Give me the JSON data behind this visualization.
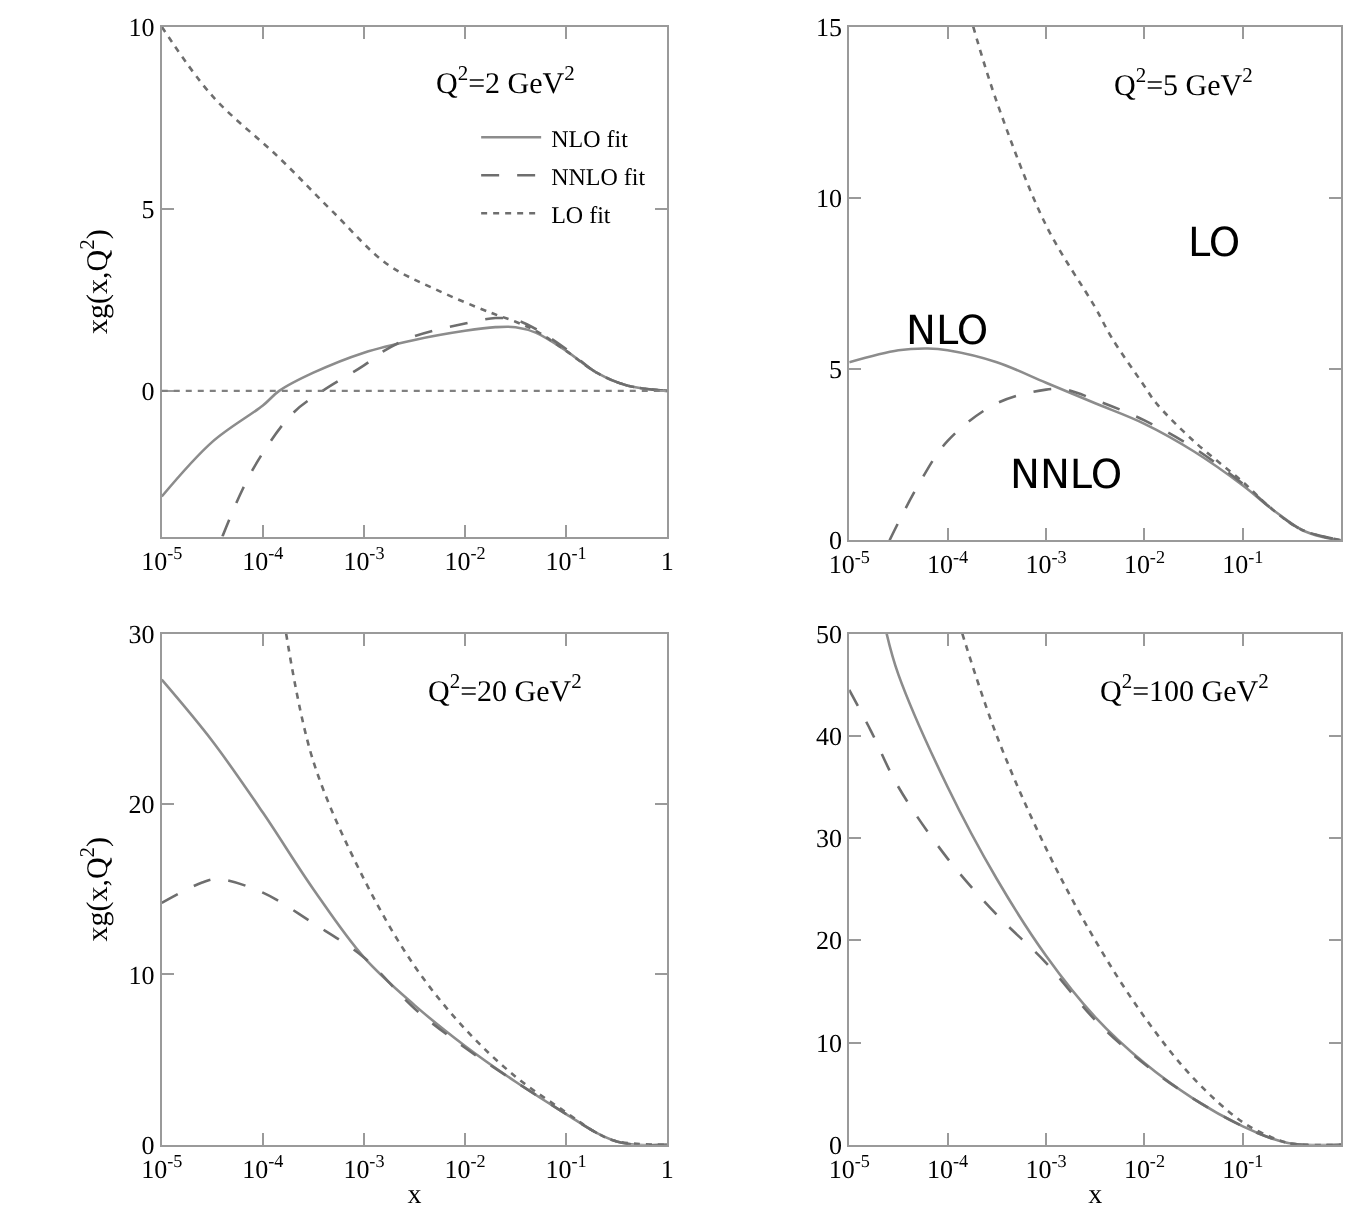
{
  "chart_data": [
    {
      "type": "line",
      "log": "x",
      "xlim": [
        1e-05,
        1
      ],
      "ylim": [
        -4,
        10
      ],
      "ylabel": "xg(x,Q$^{2}$)",
      "legend": "top right",
      "xticks": [
        {
          "value": 1e-05,
          "label": "10$^{-5}$"
        },
        {
          "value": 0.0001,
          "label": "10$^{-4}$"
        },
        {
          "value": 0.001,
          "label": "10$^{-3}$"
        },
        {
          "value": 0.01,
          "label": "10$^{-2}$"
        },
        {
          "value": 0.1,
          "label": "10$^{-1}$"
        },
        1
      ],
      "yticks": [
        0,
        5,
        10
      ],
      "annotations": [
        "Q$^{2}$=2 GeV$^{2}$"
      ],
      "ref_lines": [
        {
          "axis": "y",
          "value": 0,
          "color": "#808080",
          "line_style": "dotted"
        }
      ],
      "series": [
        {
          "name": "NLO fit",
          "color": "#8c8c8c",
          "line_style": "solid",
          "x": [
            1e-05,
            3.16e-05,
            0.0001,
            0.000145,
            0.000316,
            0.001,
            0.00316,
            0.01,
            0.02,
            0.0316,
            0.05,
            0.1,
            0.2,
            0.4,
            1
          ],
          "values": [
            -2.9,
            -1.4,
            -0.4,
            0,
            0.5,
            1.05,
            1.4,
            1.65,
            1.75,
            1.75,
            1.6,
            1.1,
            0.5,
            0.15,
            0
          ]
        },
        {
          "name": "NNLO fit",
          "color": "#6e6e6e",
          "line_style": "dashed",
          "x": [
            3.98e-05,
            6.31e-05,
            0.0001,
            0.0002,
            0.00039,
            0.001,
            0.00158,
            0.00316,
            0.01,
            0.02,
            0.0316,
            0.05,
            0.1,
            0.2,
            0.4,
            1
          ],
          "values": [
            -4,
            -2.7,
            -1.7,
            -0.6,
            0,
            0.7,
            1.1,
            1.5,
            1.85,
            2.0,
            1.95,
            1.7,
            1.15,
            0.5,
            0.15,
            0
          ]
        },
        {
          "name": "LO fit",
          "color": "#6e6e6e",
          "line_style": "dotted",
          "x": [
            1e-05,
            3.16e-05,
            0.000145,
            0.0005,
            0.00166,
            0.005,
            0.0178,
            0.0316,
            0.05,
            0.1,
            0.2,
            0.4,
            1
          ],
          "values": [
            10,
            8.1,
            6.4,
            4.9,
            3.5,
            2.8,
            2.15,
            1.9,
            1.65,
            1.1,
            0.5,
            0.15,
            0
          ]
        }
      ]
    },
    {
      "type": "line",
      "log": "x",
      "xlim": [
        1e-05,
        1
      ],
      "ylim": [
        0,
        15
      ],
      "xticks": [
        {
          "value": 1e-05,
          "label": "10$^{-5}$"
        },
        {
          "value": 0.0001,
          "label": "10$^{-4}$"
        },
        {
          "value": 0.001,
          "label": "10$^{-3}$"
        },
        {
          "value": 0.01,
          "label": "10$^{-2}$"
        },
        {
          "value": 0.1,
          "label": "10$^{-1}$"
        }
      ],
      "yticks": [
        0,
        5,
        10,
        15
      ],
      "annotations": [
        "Q$^{2}$=5 GeV$^{2}$",
        "LO",
        "NLO",
        "NNLO"
      ],
      "series": [
        {
          "color": "#8c8c8c",
          "line_style": "solid",
          "x": [
            1e-05,
            3.16e-05,
            6.31e-05,
            0.0001,
            0.000316,
            0.001,
            0.00316,
            0.01,
            0.0316,
            0.1,
            0.2,
            0.4,
            0.63,
            1
          ],
          "values": [
            5.2,
            5.55,
            5.6,
            5.55,
            5.2,
            4.6,
            4.0,
            3.4,
            2.6,
            1.6,
            0.9,
            0.3,
            0.1,
            0
          ]
        },
        {
          "color": "#6e6e6e",
          "line_style": "dashed",
          "x": [
            2.57e-05,
            5.01e-05,
            0.0001,
            0.000316,
            0.001,
            0.00158,
            0.00316,
            0.01,
            0.0316,
            0.1,
            0.2,
            0.4,
            1
          ],
          "values": [
            0,
            1.6,
            2.9,
            4.0,
            4.4,
            4.4,
            4.1,
            3.5,
            2.7,
            1.65,
            0.9,
            0.3,
            0
          ]
        },
        {
          "color": "#6e6e6e",
          "line_style": "dotted",
          "x": [
            0.000182,
            0.000316,
            0.001,
            0.00316,
            0.00468,
            0.01,
            0.0132,
            0.0316,
            0.1,
            0.2,
            0.4,
            1
          ],
          "values": [
            15,
            12.8,
            9.2,
            6.8,
            5.9,
            4.5,
            4.0,
            2.9,
            1.7,
            0.9,
            0.3,
            0
          ]
        }
      ]
    },
    {
      "type": "line",
      "log": "x",
      "xlim": [
        1e-05,
        1
      ],
      "ylim": [
        0,
        30
      ],
      "ylabel": "xg(x,Q$^{2}$)",
      "xlabel": "x",
      "xticks": [
        {
          "value": 1e-05,
          "label": "10$^{-5}$"
        },
        {
          "value": 0.0001,
          "label": "10$^{-4}$"
        },
        {
          "value": 0.001,
          "label": "10$^{-3}$"
        },
        {
          "value": 0.01,
          "label": "10$^{-2}$"
        },
        {
          "value": 0.1,
          "label": "10$^{-1}$"
        },
        1
      ],
      "yticks": [
        0,
        10,
        20,
        30
      ],
      "annotations": [
        "Q$^{2}$=20 GeV$^{2}$"
      ],
      "series": [
        {
          "color": "#8c8c8c",
          "line_style": "solid",
          "x": [
            1e-05,
            3.16e-05,
            0.0001,
            0.000316,
            0.001,
            0.00316,
            0.01,
            0.0316,
            0.1,
            0.2,
            0.316,
            0.5,
            1
          ],
          "values": [
            27.3,
            23.7,
            19.5,
            15,
            11.0,
            8.2,
            5.8,
            3.7,
            1.8,
            0.7,
            0.2,
            0,
            0
          ]
        },
        {
          "color": "#6e6e6e",
          "line_style": "dashed",
          "x": [
            1e-05,
            2.51e-05,
            3.63e-05,
            0.0001,
            0.000316,
            0.001,
            0.00316,
            0.01,
            0.0316,
            0.1,
            0.2,
            0.316,
            0.5,
            1
          ],
          "values": [
            14.2,
            15.4,
            15.6,
            14.8,
            13.0,
            11.0,
            8.0,
            5.7,
            3.7,
            1.8,
            0.7,
            0.2,
            0,
            0
          ]
        },
        {
          "color": "#6e6e6e",
          "line_style": "dotted",
          "x": [
            0.00017,
            0.000316,
            0.001,
            0.00316,
            0.01,
            0.0316,
            0.1,
            0.2,
            0.316,
            1
          ],
          "values": [
            30,
            22.5,
            15.6,
            10.5,
            6.8,
            4.0,
            1.9,
            0.7,
            0.2,
            0
          ]
        }
      ]
    },
    {
      "type": "line",
      "log": "x",
      "xlim": [
        1e-05,
        1
      ],
      "ylim": [
        0,
        50
      ],
      "xlabel": "x",
      "xticks": [
        {
          "value": 1e-05,
          "label": "10$^{-5}$"
        },
        {
          "value": 0.0001,
          "label": "10$^{-4}$"
        },
        {
          "value": 0.001,
          "label": "10$^{-3}$"
        },
        {
          "value": 0.01,
          "label": "10$^{-2}$"
        },
        {
          "value": 0.1,
          "label": "10$^{-1}$"
        }
      ],
      "yticks": [
        0,
        10,
        20,
        30,
        40,
        50
      ],
      "annotations": [
        "Q$^{2}$=100 GeV$^{2}$"
      ],
      "series": [
        {
          "color": "#8c8c8c",
          "line_style": "solid",
          "x": [
            2.4e-05,
            3.16e-05,
            0.0001,
            0.000316,
            0.001,
            0.00316,
            0.01,
            0.0316,
            0.1,
            0.2,
            0.316,
            1
          ],
          "values": [
            50,
            46,
            35,
            26,
            18.5,
            12.5,
            8,
            4.5,
            1.8,
            0.6,
            0.1,
            0
          ]
        },
        {
          "color": "#6e6e6e",
          "line_style": "dashed",
          "x": [
            1e-05,
            1.66e-05,
            3.16e-05,
            0.0001,
            0.000316,
            0.001,
            0.00316,
            0.01,
            0.0316,
            0.1,
            0.2,
            0.316,
            1
          ],
          "values": [
            44.5,
            40.5,
            35,
            28,
            22.5,
            17.8,
            12.2,
            7.9,
            4.5,
            1.8,
            0.6,
            0.1,
            0
          ]
        },
        {
          "color": "#6e6e6e",
          "line_style": "dotted",
          "x": [
            0.000141,
            0.000316,
            0.001,
            0.00316,
            0.01,
            0.0316,
            0.1,
            0.2,
            0.316,
            1
          ],
          "values": [
            50,
            40,
            29,
            20,
            12.5,
            6.5,
            2.2,
            0.7,
            0.1,
            0
          ]
        }
      ]
    }
  ]
}
